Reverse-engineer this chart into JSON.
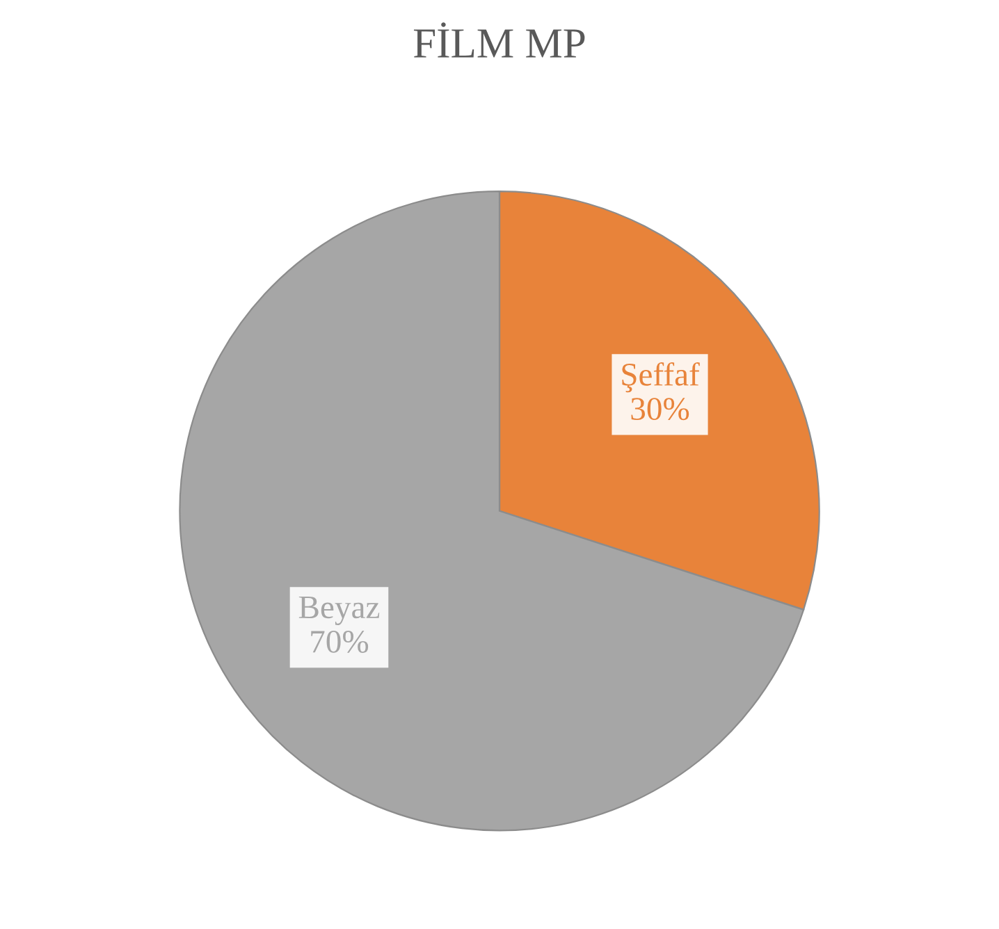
{
  "chart_data": {
    "type": "pie",
    "title": "FİLM MP",
    "categories": [
      "Şeffaf",
      "Beyaz"
    ],
    "values": [
      30,
      70
    ],
    "colors": [
      "#e8833a",
      "#a6a6a6"
    ],
    "value_labels": [
      "30%",
      "70%"
    ],
    "legend": false
  }
}
